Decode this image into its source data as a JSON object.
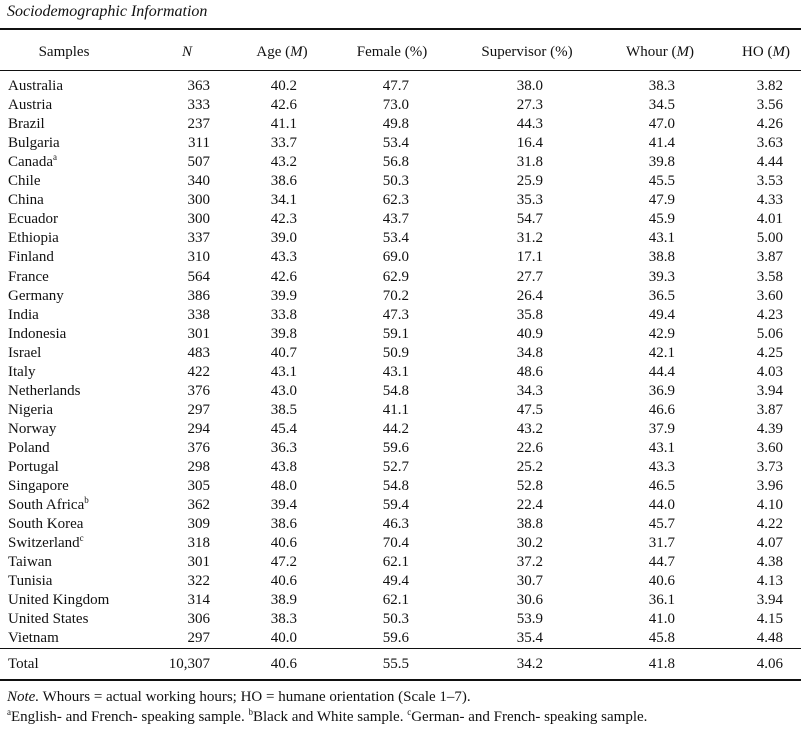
{
  "title": "Sociodemographic Information",
  "table": {
    "headers": [
      [
        {
          "text": "Samples"
        }
      ],
      [
        {
          "text": "N",
          "italic": true
        }
      ],
      [
        {
          "text": "Age ("
        },
        {
          "text": "M",
          "italic": true
        },
        {
          "text": ")"
        }
      ],
      [
        {
          "text": "Female (%)"
        }
      ],
      [
        {
          "text": "Supervisor (%)"
        }
      ],
      [
        {
          "text": "Whour ("
        },
        {
          "text": "M",
          "italic": true
        },
        {
          "text": ")"
        }
      ],
      [
        {
          "text": "HO ("
        },
        {
          "text": "M",
          "italic": true
        },
        {
          "text": ")"
        }
      ]
    ],
    "rows": [
      {
        "cells": [
          "Australia",
          "363",
          "40.2",
          "47.7",
          "38.0",
          "38.3",
          "3.82"
        ]
      },
      {
        "cells": [
          "Austria",
          "333",
          "42.6",
          "73.0",
          "27.3",
          "34.5",
          "3.56"
        ]
      },
      {
        "cells": [
          "Brazil",
          "237",
          "41.1",
          "49.8",
          "44.3",
          "47.0",
          "4.26"
        ]
      },
      {
        "cells": [
          "Bulgaria",
          "311",
          "33.7",
          "53.4",
          "16.4",
          "41.4",
          "3.63"
        ]
      },
      {
        "cells": [
          "Canada",
          "507",
          "43.2",
          "56.8",
          "31.8",
          "39.8",
          "4.44"
        ],
        "mark": "a"
      },
      {
        "cells": [
          "Chile",
          "340",
          "38.6",
          "50.3",
          "25.9",
          "45.5",
          "3.53"
        ]
      },
      {
        "cells": [
          "China",
          "300",
          "34.1",
          "62.3",
          "35.3",
          "47.9",
          "4.33"
        ]
      },
      {
        "cells": [
          "Ecuador",
          "300",
          "42.3",
          "43.7",
          "54.7",
          "45.9",
          "4.01"
        ]
      },
      {
        "cells": [
          "Ethiopia",
          "337",
          "39.0",
          "53.4",
          "31.2",
          "43.1",
          "5.00"
        ]
      },
      {
        "cells": [
          "Finland",
          "310",
          "43.3",
          "69.0",
          "17.1",
          "38.8",
          "3.87"
        ]
      },
      {
        "cells": [
          "France",
          "564",
          "42.6",
          "62.9",
          "27.7",
          "39.3",
          "3.58"
        ]
      },
      {
        "cells": [
          "Germany",
          "386",
          "39.9",
          "70.2",
          "26.4",
          "36.5",
          "3.60"
        ]
      },
      {
        "cells": [
          "India",
          "338",
          "33.8",
          "47.3",
          "35.8",
          "49.4",
          "4.23"
        ]
      },
      {
        "cells": [
          "Indonesia",
          "301",
          "39.8",
          "59.1",
          "40.9",
          "42.9",
          "5.06"
        ]
      },
      {
        "cells": [
          "Israel",
          "483",
          "40.7",
          "50.9",
          "34.8",
          "42.1",
          "4.25"
        ]
      },
      {
        "cells": [
          "Italy",
          "422",
          "43.1",
          "43.1",
          "48.6",
          "44.4",
          "4.03"
        ]
      },
      {
        "cells": [
          "Netherlands",
          "376",
          "43.0",
          "54.8",
          "34.3",
          "36.9",
          "3.94"
        ]
      },
      {
        "cells": [
          "Nigeria",
          "297",
          "38.5",
          "41.1",
          "47.5",
          "46.6",
          "3.87"
        ]
      },
      {
        "cells": [
          "Norway",
          "294",
          "45.4",
          "44.2",
          "43.2",
          "37.9",
          "4.39"
        ]
      },
      {
        "cells": [
          "Poland",
          "376",
          "36.3",
          "59.6",
          "22.6",
          "43.1",
          "3.60"
        ]
      },
      {
        "cells": [
          "Portugal",
          "298",
          "43.8",
          "52.7",
          "25.2",
          "43.3",
          "3.73"
        ]
      },
      {
        "cells": [
          "Singapore",
          "305",
          "48.0",
          "54.8",
          "52.8",
          "46.5",
          "3.96"
        ]
      },
      {
        "cells": [
          "South Africa",
          "362",
          "39.4",
          "59.4",
          "22.4",
          "44.0",
          "4.10"
        ],
        "mark": "b"
      },
      {
        "cells": [
          "South Korea",
          "309",
          "38.6",
          "46.3",
          "38.8",
          "45.7",
          "4.22"
        ]
      },
      {
        "cells": [
          "Switzerland",
          "318",
          "40.6",
          "70.4",
          "30.2",
          "31.7",
          "4.07"
        ],
        "mark": "c"
      },
      {
        "cells": [
          "Taiwan",
          "301",
          "47.2",
          "62.1",
          "37.2",
          "44.7",
          "4.38"
        ]
      },
      {
        "cells": [
          "Tunisia",
          "322",
          "40.6",
          "49.4",
          "30.7",
          "40.6",
          "4.13"
        ]
      },
      {
        "cells": [
          "United Kingdom",
          "314",
          "38.9",
          "62.1",
          "30.6",
          "36.1",
          "3.94"
        ]
      },
      {
        "cells": [
          "United States",
          "306",
          "38.3",
          "50.3",
          "53.9",
          "41.0",
          "4.15"
        ]
      },
      {
        "cells": [
          "Vietnam",
          "297",
          "40.0",
          "59.6",
          "35.4",
          "45.8",
          "4.48"
        ]
      }
    ],
    "total": [
      "Total",
      "10,307",
      "40.6",
      "55.5",
      "34.2",
      "41.8",
      "4.06"
    ]
  },
  "notes": [
    [
      {
        "text": "Note.",
        "italic": true
      },
      {
        "text": "  Whours = actual working hours; HO = humane orientation (Scale 1–7)."
      }
    ],
    [
      {
        "text": "a",
        "sup": true
      },
      {
        "text": "English- and French- speaking sample.  "
      },
      {
        "text": "b",
        "sup": true
      },
      {
        "text": "Black and White sample.  "
      },
      {
        "text": "c",
        "sup": true
      },
      {
        "text": "German- and French- speaking sample."
      }
    ]
  ]
}
